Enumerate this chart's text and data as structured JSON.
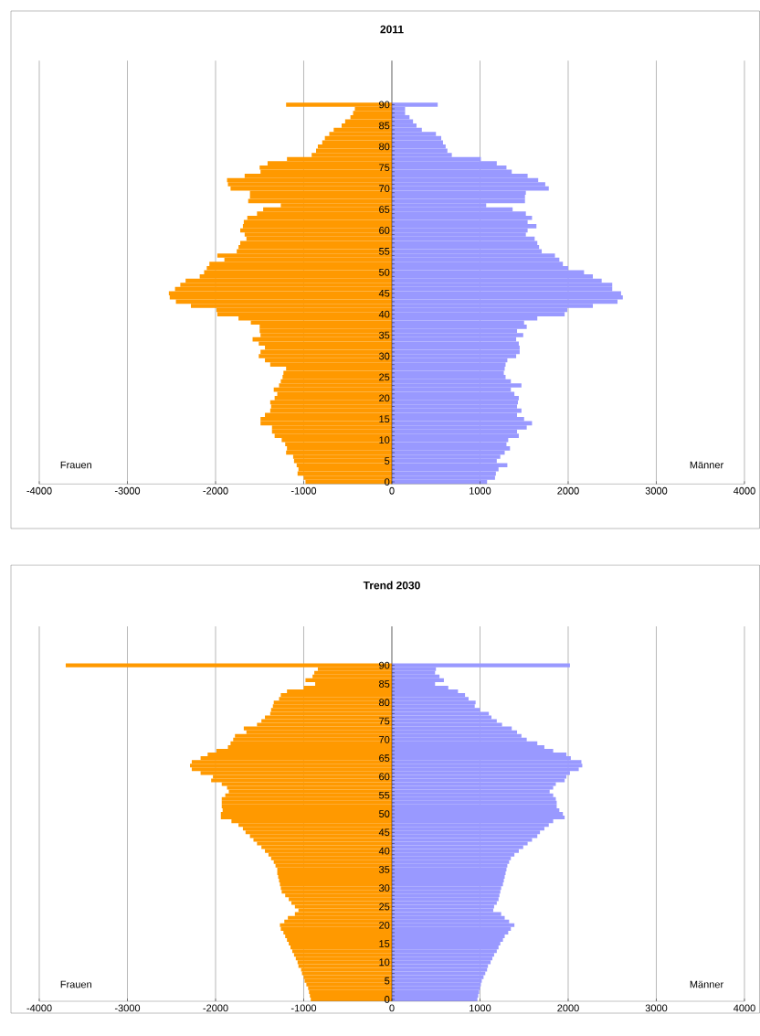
{
  "chart_data": [
    {
      "type": "bar",
      "title": "2011",
      "orientation": "horizontal",
      "stacked": true,
      "grid": "x",
      "categories": [
        "90",
        null,
        null,
        null,
        null,
        "85",
        null,
        null,
        null,
        null,
        "80",
        null,
        null,
        null,
        null,
        "75",
        null,
        null,
        null,
        null,
        "70",
        null,
        null,
        null,
        null,
        "65",
        null,
        null,
        null,
        null,
        "60",
        null,
        null,
        null,
        null,
        "55",
        null,
        null,
        null,
        null,
        "50",
        null,
        null,
        null,
        null,
        "45",
        null,
        null,
        null,
        null,
        "40",
        null,
        null,
        null,
        null,
        "35",
        null,
        null,
        null,
        null,
        "30",
        null,
        null,
        null,
        null,
        "25",
        null,
        null,
        null,
        null,
        "20",
        null,
        null,
        null,
        null,
        "15",
        null,
        null,
        null,
        null,
        "10",
        null,
        null,
        null,
        null,
        "5",
        null,
        null,
        null,
        null,
        "0"
      ],
      "series": [
        {
          "color": "#ff9900",
          "values": [
            -1200,
            -420,
            -440,
            -470,
            -530,
            -570,
            -660,
            -710,
            -760,
            -790,
            -840,
            -860,
            -910,
            -1190,
            -1410,
            -1500,
            -1490,
            -1670,
            -1870,
            -1860,
            -1830,
            -1610,
            -1610,
            -1630,
            -1260,
            -1460,
            -1530,
            -1640,
            -1680,
            -1690,
            -1720,
            -1670,
            -1650,
            -1720,
            -1740,
            -1760,
            -1980,
            -1900,
            -2070,
            -2100,
            -2130,
            -2180,
            -2340,
            -2400,
            -2460,
            -2530,
            -2520,
            -2450,
            -2280,
            -1990,
            -1980,
            -1740,
            -1600,
            -1500,
            -1500,
            -1490,
            -1580,
            -1510,
            -1440,
            -1490,
            -1510,
            -1440,
            -1380,
            -1200,
            -1230,
            -1240,
            -1260,
            -1280,
            -1340,
            -1300,
            -1330,
            -1380,
            -1370,
            -1380,
            -1440,
            -1490,
            -1490,
            -1360,
            -1360,
            -1330,
            -1250,
            -1210,
            -1190,
            -1200,
            -1120,
            -1110,
            -1080,
            -1060,
            -1070,
            -1000,
            -980
          ]
        },
        {
          "color": "#9999ff",
          "values": [
            520,
            150,
            150,
            200,
            240,
            280,
            340,
            500,
            560,
            580,
            610,
            630,
            680,
            1010,
            1190,
            1300,
            1360,
            1540,
            1660,
            1740,
            1780,
            1520,
            1510,
            1510,
            1070,
            1370,
            1520,
            1590,
            1540,
            1640,
            1540,
            1520,
            1620,
            1650,
            1670,
            1700,
            1850,
            1900,
            1940,
            2000,
            2180,
            2280,
            2380,
            2500,
            2500,
            2600,
            2620,
            2560,
            2280,
            1990,
            1960,
            1650,
            1500,
            1530,
            1420,
            1490,
            1410,
            1440,
            1450,
            1450,
            1410,
            1310,
            1290,
            1280,
            1270,
            1290,
            1350,
            1470,
            1350,
            1390,
            1440,
            1430,
            1420,
            1470,
            1420,
            1500,
            1590,
            1530,
            1420,
            1440,
            1320,
            1300,
            1340,
            1280,
            1230,
            1190,
            1310,
            1210,
            1180,
            1170,
            1080
          ]
        }
      ],
      "xlim": [
        -4000,
        4000
      ],
      "xticks": [
        -4000,
        -3000,
        -2000,
        -1000,
        0,
        1000,
        2000,
        3000,
        4000
      ],
      "annotations": [
        "Frauen",
        "Männer"
      ]
    },
    {
      "type": "bar",
      "title": "Trend 2030",
      "orientation": "horizontal",
      "stacked": true,
      "grid": "x",
      "categories": [
        "90",
        null,
        null,
        null,
        null,
        "85",
        null,
        null,
        null,
        null,
        "80",
        null,
        null,
        null,
        null,
        "75",
        null,
        null,
        null,
        null,
        "70",
        null,
        null,
        null,
        null,
        "65",
        null,
        null,
        null,
        null,
        "60",
        null,
        null,
        null,
        null,
        "55",
        null,
        null,
        null,
        null,
        "50",
        null,
        null,
        null,
        null,
        "45",
        null,
        null,
        null,
        null,
        "40",
        null,
        null,
        null,
        null,
        "35",
        null,
        null,
        null,
        null,
        "30",
        null,
        null,
        null,
        null,
        "25",
        null,
        null,
        null,
        null,
        "20",
        null,
        null,
        null,
        null,
        "15",
        null,
        null,
        null,
        null,
        "10",
        null,
        null,
        null,
        null,
        "5",
        null,
        null,
        null,
        null,
        "0"
      ],
      "series": [
        {
          "color": "#ff9900",
          "values": [
            -3700,
            -840,
            -880,
            -900,
            -980,
            -870,
            -1000,
            -1190,
            -1260,
            -1280,
            -1340,
            -1350,
            -1370,
            -1380,
            -1440,
            -1480,
            -1530,
            -1680,
            -1650,
            -1780,
            -1800,
            -1830,
            -1860,
            -1990,
            -2090,
            -2170,
            -2270,
            -2290,
            -2270,
            -2170,
            -2030,
            -2050,
            -1930,
            -1870,
            -1850,
            -1890,
            -1930,
            -1930,
            -1930,
            -1920,
            -1940,
            -1940,
            -1820,
            -1740,
            -1690,
            -1660,
            -1610,
            -1570,
            -1530,
            -1480,
            -1440,
            -1400,
            -1370,
            -1340,
            -1320,
            -1300,
            -1300,
            -1290,
            -1280,
            -1270,
            -1260,
            -1250,
            -1210,
            -1170,
            -1140,
            -1100,
            -1060,
            -1100,
            -1180,
            -1220,
            -1270,
            -1260,
            -1230,
            -1210,
            -1190,
            -1170,
            -1150,
            -1130,
            -1110,
            -1090,
            -1070,
            -1060,
            -1030,
            -1020,
            -1000,
            -990,
            -970,
            -950,
            -940,
            -930,
            -920
          ]
        },
        {
          "color": "#9999ff",
          "values": [
            2020,
            500,
            490,
            540,
            590,
            490,
            640,
            750,
            830,
            870,
            950,
            940,
            1000,
            1100,
            1130,
            1190,
            1250,
            1360,
            1420,
            1470,
            1530,
            1650,
            1730,
            1830,
            1980,
            2030,
            2150,
            2160,
            2120,
            2020,
            1980,
            1960,
            1860,
            1830,
            1790,
            1830,
            1860,
            1870,
            1870,
            1900,
            1940,
            1960,
            1830,
            1780,
            1730,
            1680,
            1650,
            1590,
            1540,
            1490,
            1440,
            1390,
            1350,
            1330,
            1310,
            1300,
            1290,
            1280,
            1270,
            1260,
            1240,
            1230,
            1220,
            1210,
            1190,
            1160,
            1150,
            1240,
            1280,
            1330,
            1390,
            1350,
            1320,
            1280,
            1260,
            1230,
            1210,
            1190,
            1160,
            1140,
            1120,
            1090,
            1080,
            1060,
            1040,
            1020,
            1010,
            1000,
            990,
            980,
            970
          ]
        }
      ],
      "xlim": [
        -4000,
        4000
      ],
      "xticks": [
        -4000,
        -3000,
        -2000,
        -1000,
        0,
        1000,
        2000,
        3000,
        4000
      ],
      "annotations": [
        "Frauen",
        "Männer"
      ]
    }
  ]
}
